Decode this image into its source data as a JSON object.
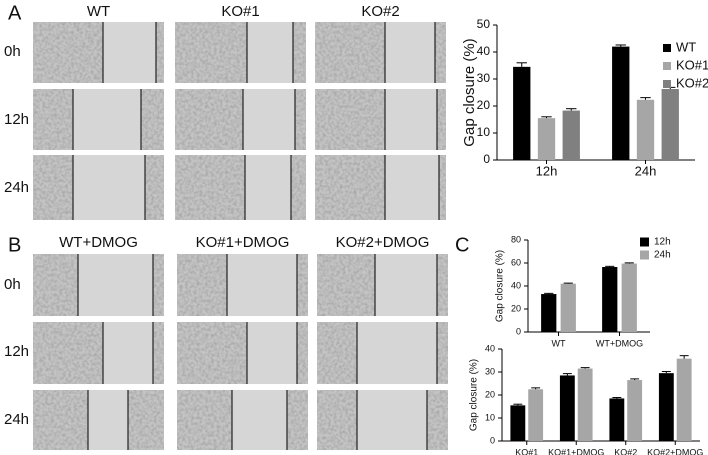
{
  "panel_a": {
    "label": "A",
    "columns": [
      "WT",
      "KO#1",
      "KO#2"
    ],
    "rows": [
      "0h",
      "12h",
      "24h"
    ]
  },
  "panel_b": {
    "label": "B",
    "columns": [
      "WT+DMOG",
      "KO#1+DMOG",
      "KO#2+DMOG"
    ],
    "rows": [
      "0h",
      "12h",
      "24h"
    ]
  },
  "panel_c": {
    "label": "C"
  },
  "chart_data": [
    {
      "type": "bar",
      "ylabel": "Gap closure (%)",
      "categories": [
        "12h",
        "24h"
      ],
      "series": [
        {
          "name": "WT",
          "color": "#000000",
          "values": [
            34.5,
            42
          ],
          "errors": [
            1.5,
            0.6
          ]
        },
        {
          "name": "KO#1",
          "color": "#a6a6a6",
          "values": [
            15.5,
            22.3
          ],
          "errors": [
            0.5,
            0.8
          ]
        },
        {
          "name": "KO#2",
          "color": "#808080",
          "values": [
            18.3,
            26.3
          ],
          "errors": [
            0.7,
            0.6
          ]
        }
      ],
      "ylim": [
        0,
        50
      ],
      "yticks": [
        0,
        10,
        20,
        30,
        40,
        50
      ]
    },
    {
      "type": "bar",
      "ylabel": "Gap closure (%)",
      "categories": [
        "WT",
        "WT+DMOG"
      ],
      "series": [
        {
          "name": "12h",
          "color": "#000000",
          "values": [
            33,
            56.5
          ],
          "errors": [
            0.6,
            0.6
          ]
        },
        {
          "name": "24h",
          "color": "#a6a6a6",
          "values": [
            42,
            59.5
          ],
          "errors": [
            0.5,
            0.6
          ]
        }
      ],
      "ylim": [
        0,
        80
      ],
      "yticks": [
        0,
        20,
        40,
        60,
        80
      ]
    },
    {
      "type": "bar",
      "ylabel": "Gap closure (%)",
      "categories": [
        "KO#1",
        "KO#1+DMOG",
        "KO#2",
        "KO#2+DMOG"
      ],
      "series": [
        {
          "color": "#000000",
          "values": [
            15.5,
            28.5,
            18.5,
            29.5
          ],
          "errors": [
            0.5,
            0.8,
            0.4,
            0.7
          ]
        },
        {
          "color": "#a6a6a6",
          "values": [
            22.5,
            31.5,
            26.5,
            35.8
          ],
          "errors": [
            0.6,
            0.4,
            0.5,
            1.3
          ]
        }
      ],
      "ylim": [
        0,
        40
      ],
      "yticks": [
        0,
        10,
        20,
        30,
        40
      ]
    }
  ]
}
